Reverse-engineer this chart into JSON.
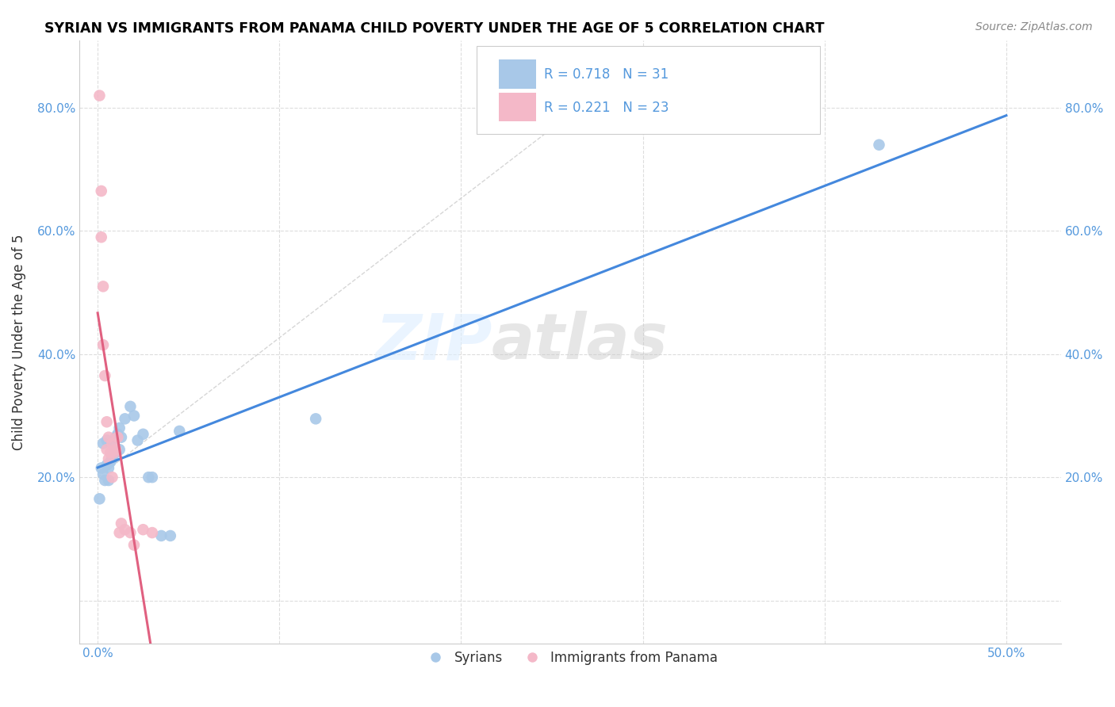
{
  "title": "SYRIAN VS IMMIGRANTS FROM PANAMA CHILD POVERTY UNDER THE AGE OF 5 CORRELATION CHART",
  "source": "Source: ZipAtlas.com",
  "ylabel": "Child Poverty Under the Age of 5",
  "x_ticks": [
    0.0,
    0.1,
    0.2,
    0.3,
    0.4,
    0.5
  ],
  "x_tick_labels": [
    "0.0%",
    "",
    "",
    "",
    "",
    "50.0%"
  ],
  "y_ticks": [
    0.0,
    0.2,
    0.4,
    0.6,
    0.8
  ],
  "y_tick_labels_left": [
    "",
    "20.0%",
    "40.0%",
    "60.0%",
    "80.0%"
  ],
  "y_tick_labels_right": [
    "",
    "20.0%",
    "40.0%",
    "60.0%",
    "80.0%"
  ],
  "xlim": [
    -0.01,
    0.53
  ],
  "ylim": [
    -0.07,
    0.91
  ],
  "syrians_x": [
    0.001,
    0.002,
    0.003,
    0.003,
    0.004,
    0.005,
    0.005,
    0.006,
    0.006,
    0.007,
    0.008,
    0.008,
    0.009,
    0.01,
    0.01,
    0.011,
    0.012,
    0.012,
    0.013,
    0.015,
    0.018,
    0.02,
    0.022,
    0.025,
    0.028,
    0.03,
    0.035,
    0.04,
    0.045,
    0.12,
    0.43
  ],
  "syrians_y": [
    0.165,
    0.215,
    0.205,
    0.255,
    0.195,
    0.22,
    0.26,
    0.195,
    0.215,
    0.225,
    0.235,
    0.23,
    0.25,
    0.24,
    0.265,
    0.27,
    0.28,
    0.245,
    0.265,
    0.295,
    0.315,
    0.3,
    0.26,
    0.27,
    0.2,
    0.2,
    0.105,
    0.105,
    0.275,
    0.295,
    0.74
  ],
  "panama_x": [
    0.001,
    0.002,
    0.002,
    0.003,
    0.003,
    0.004,
    0.005,
    0.005,
    0.006,
    0.006,
    0.007,
    0.008,
    0.008,
    0.009,
    0.01,
    0.011,
    0.012,
    0.013,
    0.015,
    0.018,
    0.02,
    0.025,
    0.03
  ],
  "panama_y": [
    0.82,
    0.665,
    0.59,
    0.51,
    0.415,
    0.365,
    0.29,
    0.245,
    0.265,
    0.23,
    0.24,
    0.255,
    0.2,
    0.24,
    0.245,
    0.265,
    0.11,
    0.125,
    0.115,
    0.11,
    0.09,
    0.115,
    0.11
  ],
  "blue_color": "#a8c8e8",
  "pink_color": "#f4b8c8",
  "blue_line_color": "#4488dd",
  "pink_line_color": "#e06080",
  "grid_color": "#dddddd",
  "tick_color": "#5599dd",
  "R_syrians": 0.718,
  "N_syrians": 31,
  "R_panama": 0.221,
  "N_panama": 23,
  "watermark_zip": "ZIP",
  "watermark_atlas": "atlas"
}
